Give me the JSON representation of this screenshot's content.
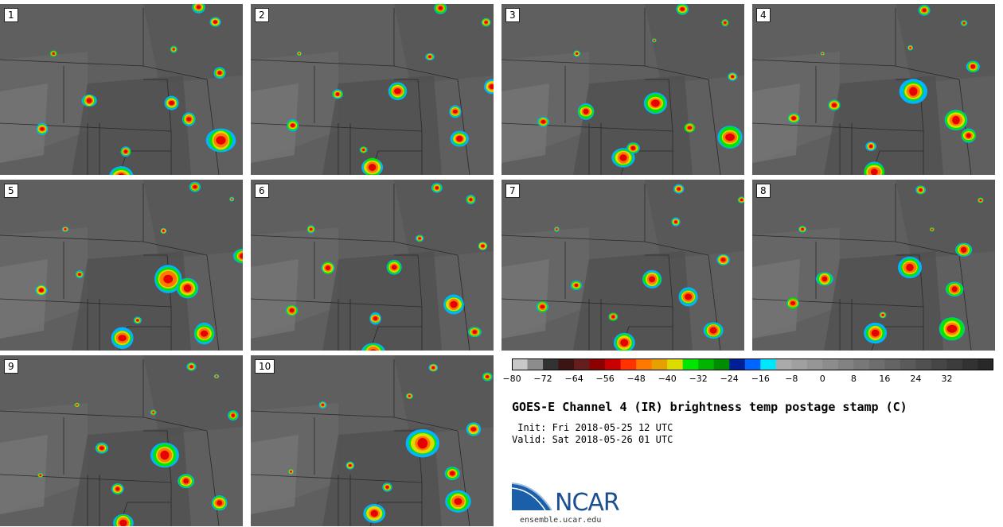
{
  "panels": [
    {
      "label": "1"
    },
    {
      "label": "2"
    },
    {
      "label": "3"
    },
    {
      "label": "4"
    },
    {
      "label": "5"
    },
    {
      "label": "6"
    },
    {
      "label": "7"
    },
    {
      "label": "8"
    },
    {
      "label": "9"
    },
    {
      "label": "10"
    }
  ],
  "colorbar": {
    "colors": [
      "#c8c8c8",
      "#8c8c8c",
      "#323232",
      "#3c1414",
      "#641e1e",
      "#8c0000",
      "#c80000",
      "#ff3200",
      "#ff7800",
      "#e6a000",
      "#dcdc00",
      "#00e600",
      "#00b400",
      "#008c00",
      "#001e96",
      "#0064ff",
      "#00e6ff",
      "#aaaaaa",
      "#a0a0a0",
      "#969696",
      "#8c8c8c",
      "#828282",
      "#787878",
      "#6e6e6e",
      "#646464",
      "#5a5a5a",
      "#505050",
      "#464646",
      "#3c3c3c",
      "#323232",
      "#282828"
    ],
    "ticks": [
      "−80",
      "−72",
      "−64",
      "−56",
      "−48",
      "−40",
      "−32",
      "−24",
      "−16",
      "−8",
      "0",
      "8",
      "16",
      "24",
      "32"
    ]
  },
  "title": "GOES-E Channel 4 (IR) brightness temp postage stamp (C)",
  "init_line": " Init: Fri 2018-05-25 12 UTC",
  "valid_line": "Valid: Sat 2018-05-26 01 UTC",
  "logo": {
    "org": "NCAR",
    "site": "ensemble.ucar.edu"
  }
}
